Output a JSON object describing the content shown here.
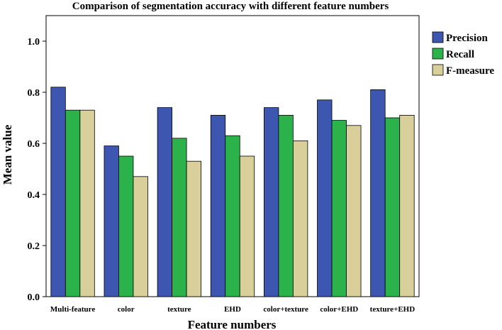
{
  "chart_data": {
    "type": "bar",
    "title": "Comparison of segmentation accuracy with different feature numbers",
    "xlabel": "Feature numbers",
    "ylabel": "Mean value",
    "ylim": [
      0,
      1.1
    ],
    "yticks": [
      "0.0",
      "0.2",
      "0.4",
      "0.6",
      "0.8",
      "1.0"
    ],
    "categories": [
      "Multi-feature",
      "color",
      "texture",
      "EHD",
      "color+texture",
      "color+EHD",
      "texture+EHD"
    ],
    "series": [
      {
        "name": "Precision",
        "color": "#3d57b0",
        "values": [
          0.82,
          0.59,
          0.74,
          0.71,
          0.74,
          0.77,
          0.81
        ]
      },
      {
        "name": "Recall",
        "color": "#2bb24a",
        "values": [
          0.73,
          0.55,
          0.62,
          0.63,
          0.71,
          0.69,
          0.7
        ]
      },
      {
        "name": "F-measure",
        "color": "#d8cf9a",
        "values": [
          0.73,
          0.47,
          0.53,
          0.55,
          0.61,
          0.67,
          0.71
        ]
      }
    ],
    "grid": false,
    "legend": "right"
  }
}
